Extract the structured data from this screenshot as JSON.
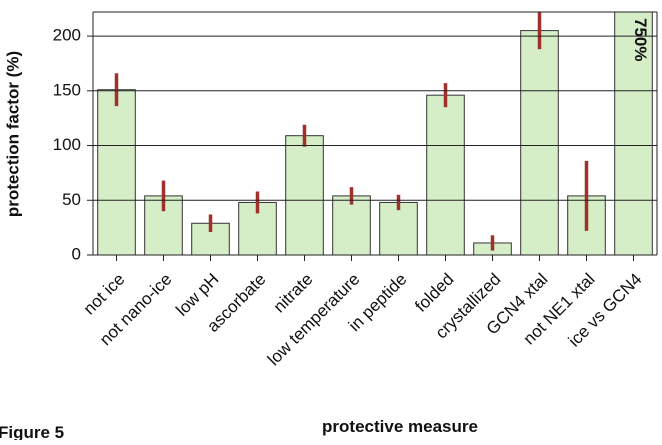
{
  "chart_data": {
    "type": "bar",
    "x_label": "protective measure",
    "y_label": "protection factor (%)",
    "categories": [
      "not ice",
      "not nano-ice",
      "low pH",
      "ascorbate",
      "nitrate",
      "low temperature",
      "in peptide",
      "folded",
      "crystallized",
      "GCN4 xtal",
      "not NE1 xtal",
      "ice vs GCN4"
    ],
    "values": [
      151,
      54,
      29,
      48,
      109,
      54,
      48,
      146,
      11,
      205,
      54,
      750
    ],
    "value_labels": [
      null,
      null,
      null,
      null,
      null,
      null,
      null,
      null,
      null,
      null,
      null,
      "750%"
    ],
    "errors": [
      15,
      14,
      8,
      10,
      10,
      8,
      7,
      11,
      7,
      17,
      32,
      null
    ],
    "color": "#d6eec8",
    "error_color": "#a0302a",
    "ylim": [
      0,
      222
    ],
    "yticks": [
      0,
      50,
      100,
      150,
      200
    ],
    "grid": true,
    "caption": "Figure 5"
  }
}
